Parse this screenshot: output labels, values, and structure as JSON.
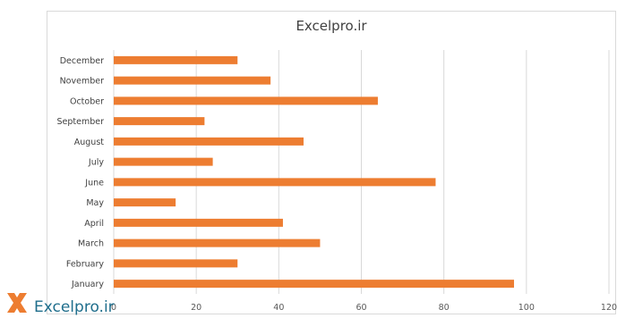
{
  "chart_data": {
    "type": "bar",
    "orientation": "horizontal",
    "title": "Excelpro.ir",
    "categories": [
      "January",
      "February",
      "March",
      "April",
      "May",
      "June",
      "July",
      "August",
      "September",
      "October",
      "November",
      "December"
    ],
    "values": [
      97,
      30,
      50,
      41,
      15,
      78,
      24,
      46,
      22,
      64,
      38,
      30
    ],
    "xlim": [
      0,
      120
    ],
    "xticks": [
      0,
      20,
      40,
      60,
      80,
      100,
      120
    ],
    "grid": "vertical",
    "legend": "none",
    "bar_color": "#ED7D31",
    "grid_color": "#d9d9d9"
  },
  "watermark": {
    "text": "Excelpro.ir",
    "icon": "excel-logo-icon",
    "text_color": "#1f6e8c",
    "icon_color": "#ED7D31"
  }
}
